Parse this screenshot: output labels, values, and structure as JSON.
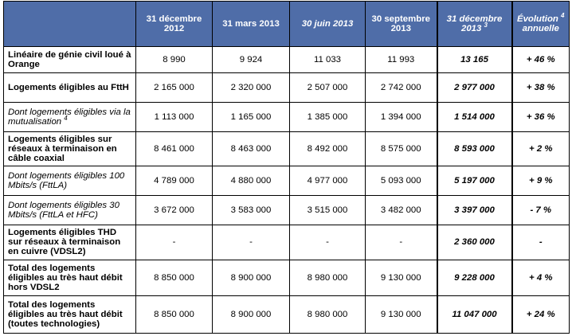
{
  "columns": [
    {
      "line1": "31 décembre",
      "line2": "2012",
      "sup": ""
    },
    {
      "line1": "31 mars 2013",
      "line2": "",
      "sup": ""
    },
    {
      "line1": "30 juin 2013",
      "line2": "",
      "sup": ""
    },
    {
      "line1": "30 septembre",
      "line2": "2013",
      "sup": ""
    },
    {
      "line1": "31 décembre",
      "line2": "2013",
      "sup": "3"
    },
    {
      "line1": "Évolution",
      "line2": "annuelle",
      "sup": "4"
    }
  ],
  "rows": [
    {
      "label": "Linéaire de génie civil loué à Orange",
      "label_sup": "",
      "values": [
        "8 990",
        "9 924",
        "11 033",
        "11 993",
        "13 165",
        "+ 46 %"
      ]
    },
    {
      "label": "Logements éligibles au FttH",
      "label_sup": "",
      "values": [
        "2 165 000",
        "2 320 000",
        "2 507 000",
        "2 742 000",
        "2 977 000",
        "+ 38 %"
      ]
    },
    {
      "label": "Dont logements éligibles via la mutualisation",
      "label_sup": "4",
      "values": [
        "1 113 000",
        "1 165 000",
        "1 385 000",
        "1 394 000",
        "1 514 000",
        "+ 36 %"
      ]
    },
    {
      "label": "Logements éligibles sur réseaux à terminaison en câble coaxial",
      "label_sup": "",
      "values": [
        "8 461 000",
        "8 463 000",
        "8 492 000",
        "8 575 000",
        "8 593 000",
        "+ 2 %"
      ]
    },
    {
      "label": "Dont logements éligibles 100 Mbits/s (FttLA)",
      "label_sup": "",
      "values": [
        "4 789 000",
        "4 880 000",
        "4 977 000",
        "5 093 000",
        "5 197 000",
        "+ 9 %"
      ]
    },
    {
      "label": "Dont logements éligibles 30 Mbits/s (FttLA et HFC)",
      "label_sup": "",
      "values": [
        "3 672 000",
        "3 583 000",
        "3 515 000",
        "3 482 000",
        "3 397 000",
        "- 7 %"
      ]
    },
    {
      "label": "Logements éligibles THD sur réseaux à terminaison en cuivre (VDSL2)",
      "label_sup": "",
      "values": [
        "-",
        "-",
        "-",
        "-",
        "2 360 000",
        "-"
      ]
    },
    {
      "label": "Total des logements éligibles au très haut débit hors VDSL2",
      "label_sup": "",
      "values": [
        "8 850 000",
        "8 900 000",
        "8 980 000",
        "9 130 000",
        "9 228 000",
        "+ 4 %"
      ]
    },
    {
      "label": "Total des logements éligibles au très haut débit (toutes technologies)",
      "label_sup": "",
      "values": [
        "8 850 000",
        "8 900 000",
        "8 980 000",
        "9 130 000",
        "11 047 000",
        "+ 24 %"
      ]
    }
  ]
}
